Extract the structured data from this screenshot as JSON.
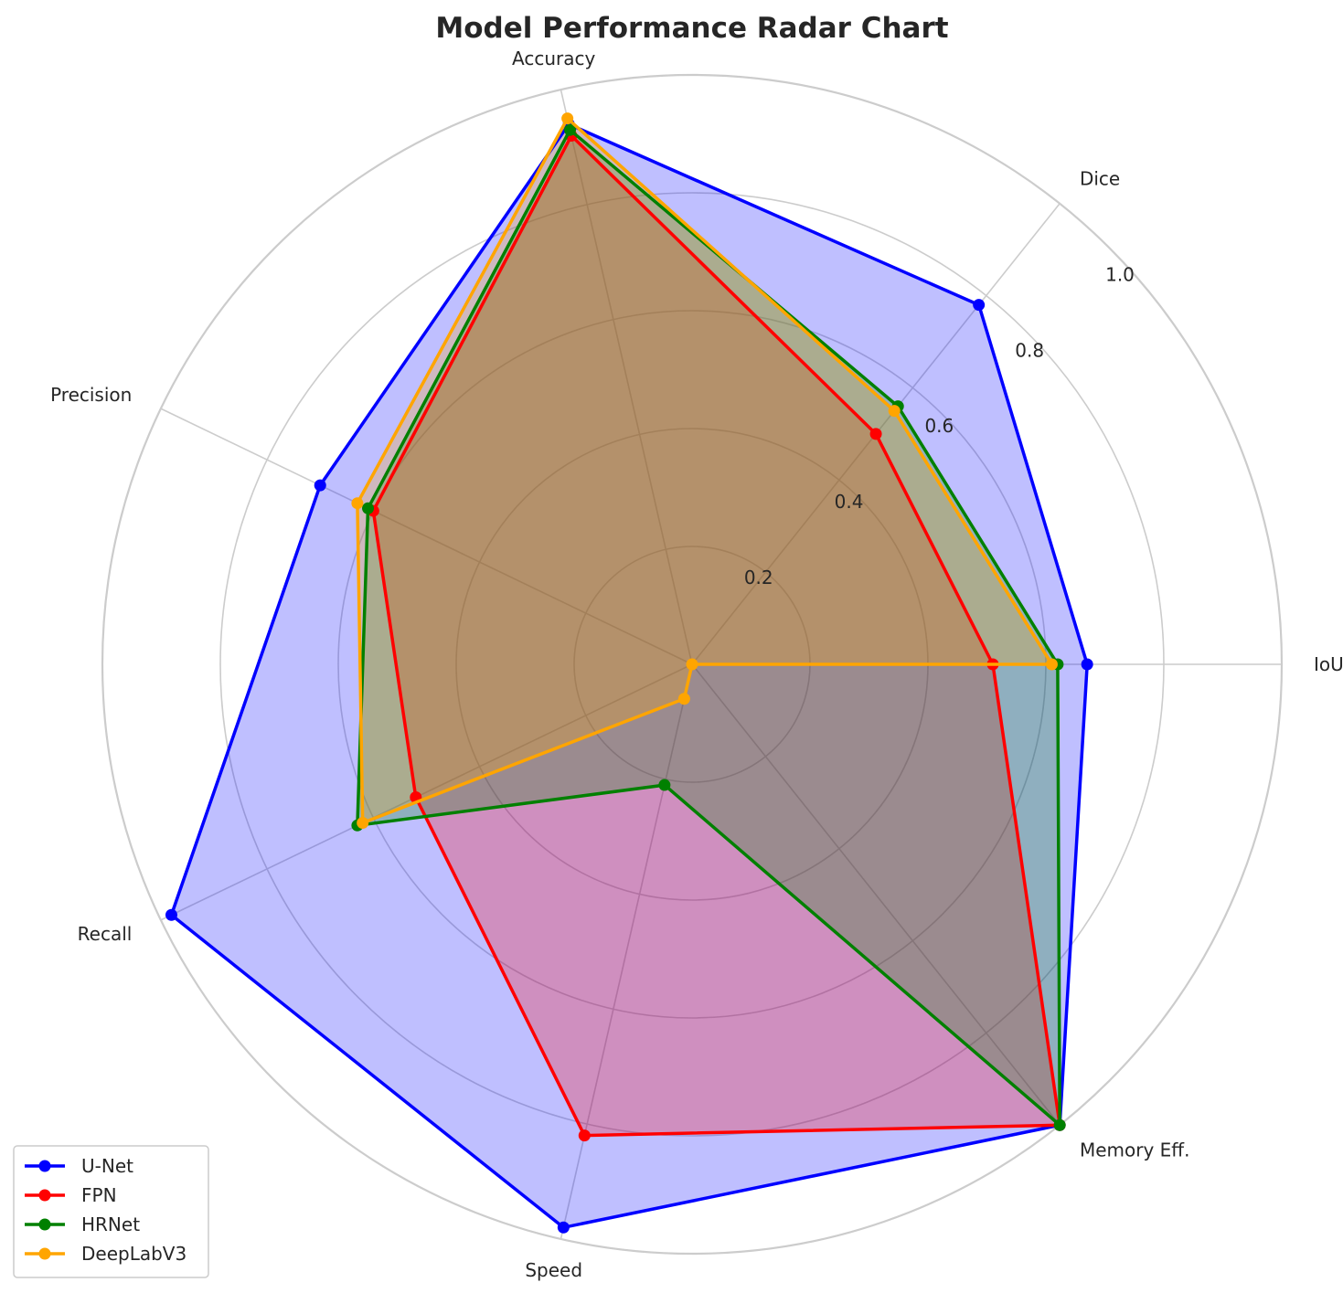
{
  "chart_data": {
    "type": "radar",
    "title": "Model Performance Radar Chart",
    "axes": [
      "IoU",
      "Dice",
      "Accuracy",
      "Precision",
      "Recall",
      "Speed",
      "Memory Eff."
    ],
    "radial_ticks": [
      "0.2",
      "0.4",
      "0.6",
      "0.8",
      "1.0"
    ],
    "rlim": [
      0,
      1.0
    ],
    "grid": true,
    "legend_position": "lower-left",
    "series": [
      {
        "name": "U-Net",
        "color": "#0000ff",
        "values": [
          0.67,
          0.78,
          0.94,
          0.7,
          0.98,
          0.98,
          1.0
        ]
      },
      {
        "name": "FPN",
        "color": "#ff0000",
        "values": [
          0.51,
          0.5,
          0.92,
          0.6,
          0.52,
          0.82,
          1.0
        ]
      },
      {
        "name": "HRNet",
        "color": "#008000",
        "values": [
          0.62,
          0.56,
          0.93,
          0.61,
          0.63,
          0.21,
          1.0
        ]
      },
      {
        "name": "DeepLabV3",
        "color": "#ffa500",
        "values": [
          0.61,
          0.55,
          0.95,
          0.63,
          0.62,
          0.06,
          0.0
        ]
      }
    ]
  }
}
